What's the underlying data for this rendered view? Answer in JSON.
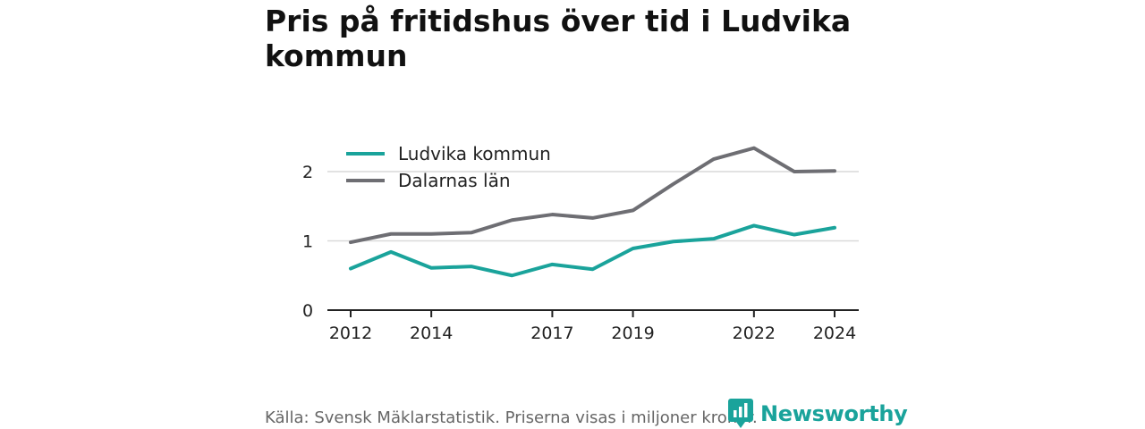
{
  "title": "Pris på fritidshus över tid i Ludvika kommun",
  "source": "Källa: Svensk Mäklarstatistik. Priserna visas i miljoner kronor.",
  "brand": {
    "name": "Newsworthy",
    "icon": "newsworthy-logo-icon",
    "color": "#1aa39b"
  },
  "chart_data": {
    "type": "line",
    "title": "Pris på fritidshus över tid i Ludvika kommun",
    "xlabel": "",
    "ylabel": "",
    "x": [
      2012,
      2013,
      2014,
      2015,
      2016,
      2017,
      2018,
      2019,
      2020,
      2021,
      2022,
      2023,
      2024
    ],
    "xticks": [
      "2012",
      "2014",
      "2017",
      "2019",
      "2022",
      "2024"
    ],
    "yticks": [
      "0",
      "1",
      "2"
    ],
    "ylim": [
      0,
      2.45
    ],
    "grid": "horizontal",
    "legend_position": "top-left",
    "series": [
      {
        "name": "Ludvika kommun",
        "color": "#1aa39b",
        "values": [
          0.6,
          0.84,
          0.61,
          0.63,
          0.5,
          0.66,
          0.59,
          0.89,
          0.99,
          1.03,
          1.22,
          1.09,
          1.19
        ]
      },
      {
        "name": "Dalarnas län",
        "color": "#6e6e73",
        "values": [
          0.98,
          1.1,
          1.1,
          1.12,
          1.3,
          1.38,
          1.33,
          1.44,
          1.82,
          2.18,
          2.34,
          2.0,
          2.01
        ]
      }
    ]
  }
}
